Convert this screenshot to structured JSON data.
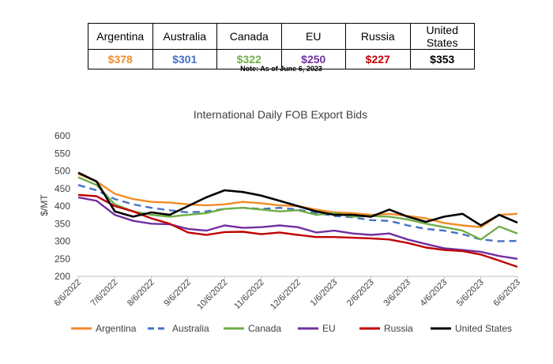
{
  "summary_table": {
    "countries": [
      "Argentina",
      "Australia",
      "Canada",
      "EU",
      "Russia",
      "United States"
    ],
    "prices": [
      "$378",
      "$301",
      "$322",
      "$250",
      "$227",
      "$353"
    ],
    "price_colors": [
      "#f28c28",
      "#4472c4",
      "#70ad47",
      "#7030a0",
      "#c00000",
      "#000000"
    ]
  },
  "note": "Note: As of June 6, 2023",
  "chart_data": {
    "type": "line",
    "title": "International Daily FOB Export Bids",
    "ylabel": "$/MT",
    "xlabel": "",
    "ylim": [
      200,
      600
    ],
    "yticks": [
      200,
      250,
      300,
      350,
      400,
      450,
      500,
      550,
      600
    ],
    "x_tick_labels": [
      "6/6/2022",
      "7/6/2022",
      "8/6/2022",
      "9/6/2022",
      "10/6/2022",
      "11/6/2022",
      "12/6/2022",
      "1/6/2023",
      "2/6/2023",
      "3/6/2023",
      "4/6/2023",
      "5/6/2023",
      "6/6/2023"
    ],
    "x": [
      "6/6/2022",
      "6/20/2022",
      "7/6/2022",
      "7/20/2022",
      "8/6/2022",
      "8/20/2022",
      "9/6/2022",
      "9/20/2022",
      "10/6/2022",
      "10/20/2022",
      "11/6/2022",
      "11/20/2022",
      "12/6/2022",
      "12/20/2022",
      "1/6/2023",
      "1/20/2023",
      "2/6/2023",
      "2/20/2023",
      "3/6/2023",
      "3/20/2023",
      "4/6/2023",
      "4/20/2023",
      "5/6/2023",
      "5/20/2023",
      "6/6/2023"
    ],
    "grid": false,
    "legend_position": "bottom",
    "series": [
      {
        "name": "Argentina",
        "color": "#f28c28",
        "dash": "solid",
        "values": [
          492,
          470,
          435,
          420,
          412,
          410,
          405,
          402,
          405,
          412,
          408,
          402,
          400,
          390,
          382,
          380,
          375,
          378,
          372,
          365,
          352,
          345,
          340,
          375,
          378
        ]
      },
      {
        "name": "Australia",
        "color": "#4472c4",
        "dash": "dashed",
        "values": [
          460,
          445,
          420,
          405,
          395,
          388,
          382,
          385,
          392,
          395,
          392,
          395,
          390,
          380,
          372,
          368,
          360,
          358,
          345,
          335,
          330,
          320,
          305,
          300,
          301
        ]
      },
      {
        "name": "Canada",
        "color": "#70ad47",
        "dash": "solid",
        "values": [
          482,
          460,
          405,
          385,
          375,
          370,
          375,
          380,
          392,
          395,
          390,
          385,
          388,
          375,
          380,
          370,
          372,
          370,
          362,
          350,
          340,
          330,
          305,
          342,
          322
        ]
      },
      {
        "name": "EU",
        "color": "#7030a0",
        "dash": "solid",
        "values": [
          425,
          415,
          375,
          358,
          350,
          348,
          335,
          330,
          345,
          338,
          340,
          345,
          340,
          325,
          330,
          322,
          318,
          322,
          305,
          292,
          280,
          275,
          270,
          258,
          250
        ]
      },
      {
        "name": "Russia",
        "color": "#c00000",
        "dash": "solid",
        "values": [
          432,
          428,
          400,
          385,
          365,
          350,
          325,
          318,
          326,
          327,
          320,
          325,
          318,
          312,
          312,
          310,
          308,
          305,
          295,
          282,
          275,
          272,
          262,
          245,
          227
        ]
      },
      {
        "name": "United States",
        "color": "#000000",
        "dash": "solid",
        "values": [
          495,
          470,
          385,
          370,
          382,
          375,
          400,
          425,
          445,
          440,
          430,
          415,
          400,
          385,
          375,
          375,
          370,
          390,
          370,
          355,
          370,
          378,
          345,
          375,
          353
        ]
      }
    ]
  }
}
